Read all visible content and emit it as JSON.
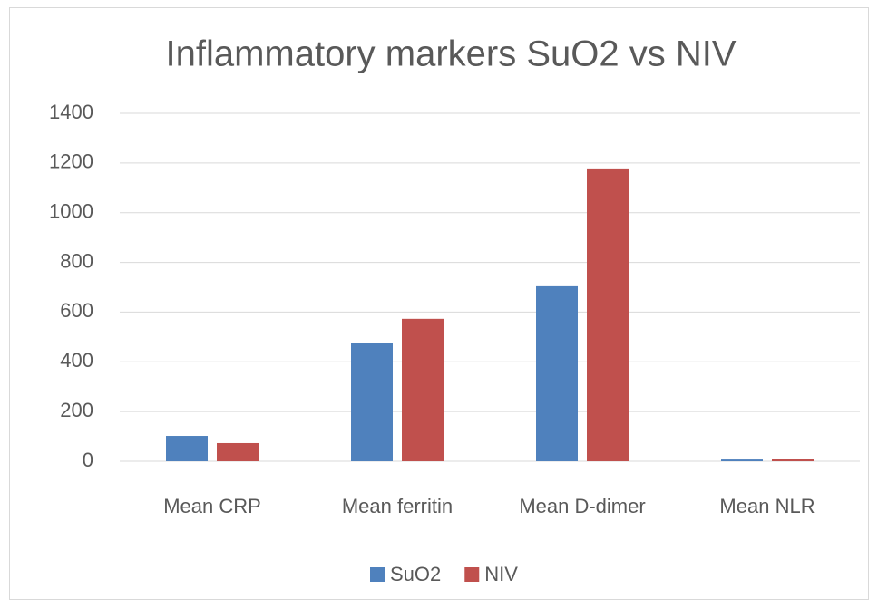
{
  "chart_data": {
    "type": "bar",
    "title": "Inflammatory markers SuO2 vs NIV",
    "categories": [
      "Mean CRP",
      "Mean ferritin",
      "Mean D-dimer",
      "Mean NLR"
    ],
    "series": [
      {
        "name": "SuO2",
        "color": "#4f81bd",
        "values": [
          102,
          474,
          704,
          7
        ]
      },
      {
        "name": "NIV",
        "color": "#c0504d",
        "values": [
          73,
          573,
          1178,
          10
        ]
      }
    ],
    "ylim": [
      0,
      1400
    ],
    "yticks": [
      0,
      200,
      400,
      600,
      800,
      1000,
      1200,
      1400
    ],
    "grid": true,
    "legend": "bottom"
  }
}
